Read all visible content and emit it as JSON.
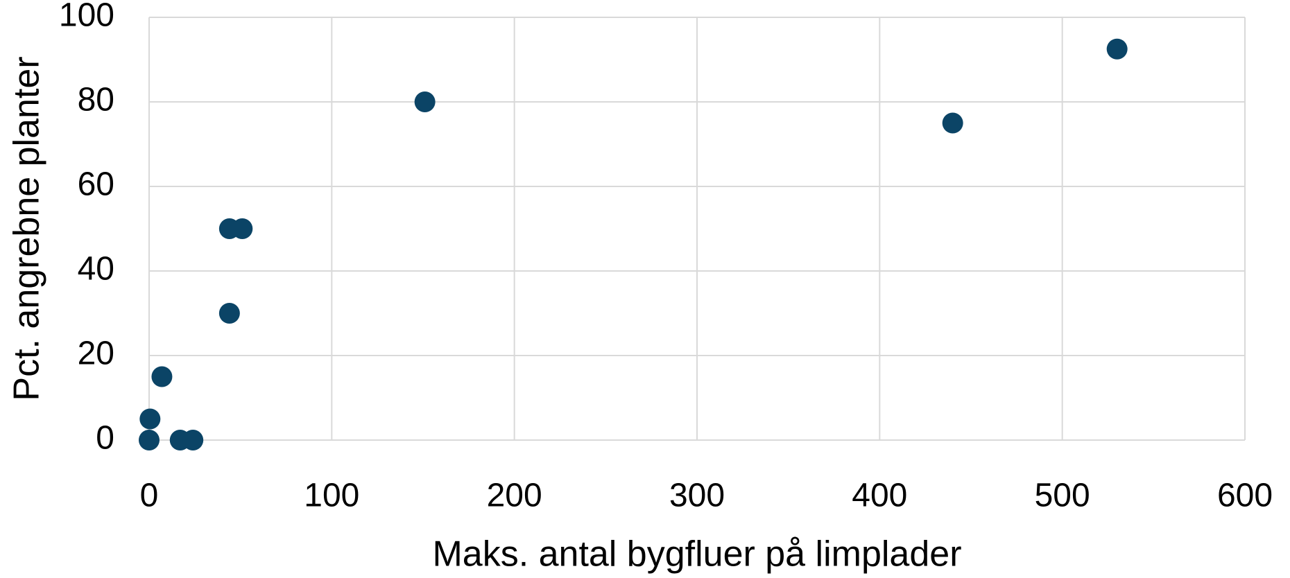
{
  "chart_data": {
    "type": "scatter",
    "xlabel": "Maks. antal bygfluer på limplader",
    "ylabel": "Pct. angrebne planter",
    "series": [
      {
        "color": "#0b4466",
        "x": [
          0.5,
          0,
          7,
          17,
          24,
          44,
          51,
          44,
          151,
          440,
          530
        ],
        "values": [
          5,
          0,
          15,
          0,
          0,
          50,
          50,
          30,
          80,
          75,
          92.5
        ]
      }
    ],
    "xlim": [
      0,
      600
    ],
    "xticks": [
      0,
      100,
      200,
      300,
      400,
      500,
      600
    ],
    "ylim": [
      0,
      100
    ],
    "yticks": [
      0,
      20,
      40,
      60,
      80,
      100
    ],
    "grid": true
  }
}
